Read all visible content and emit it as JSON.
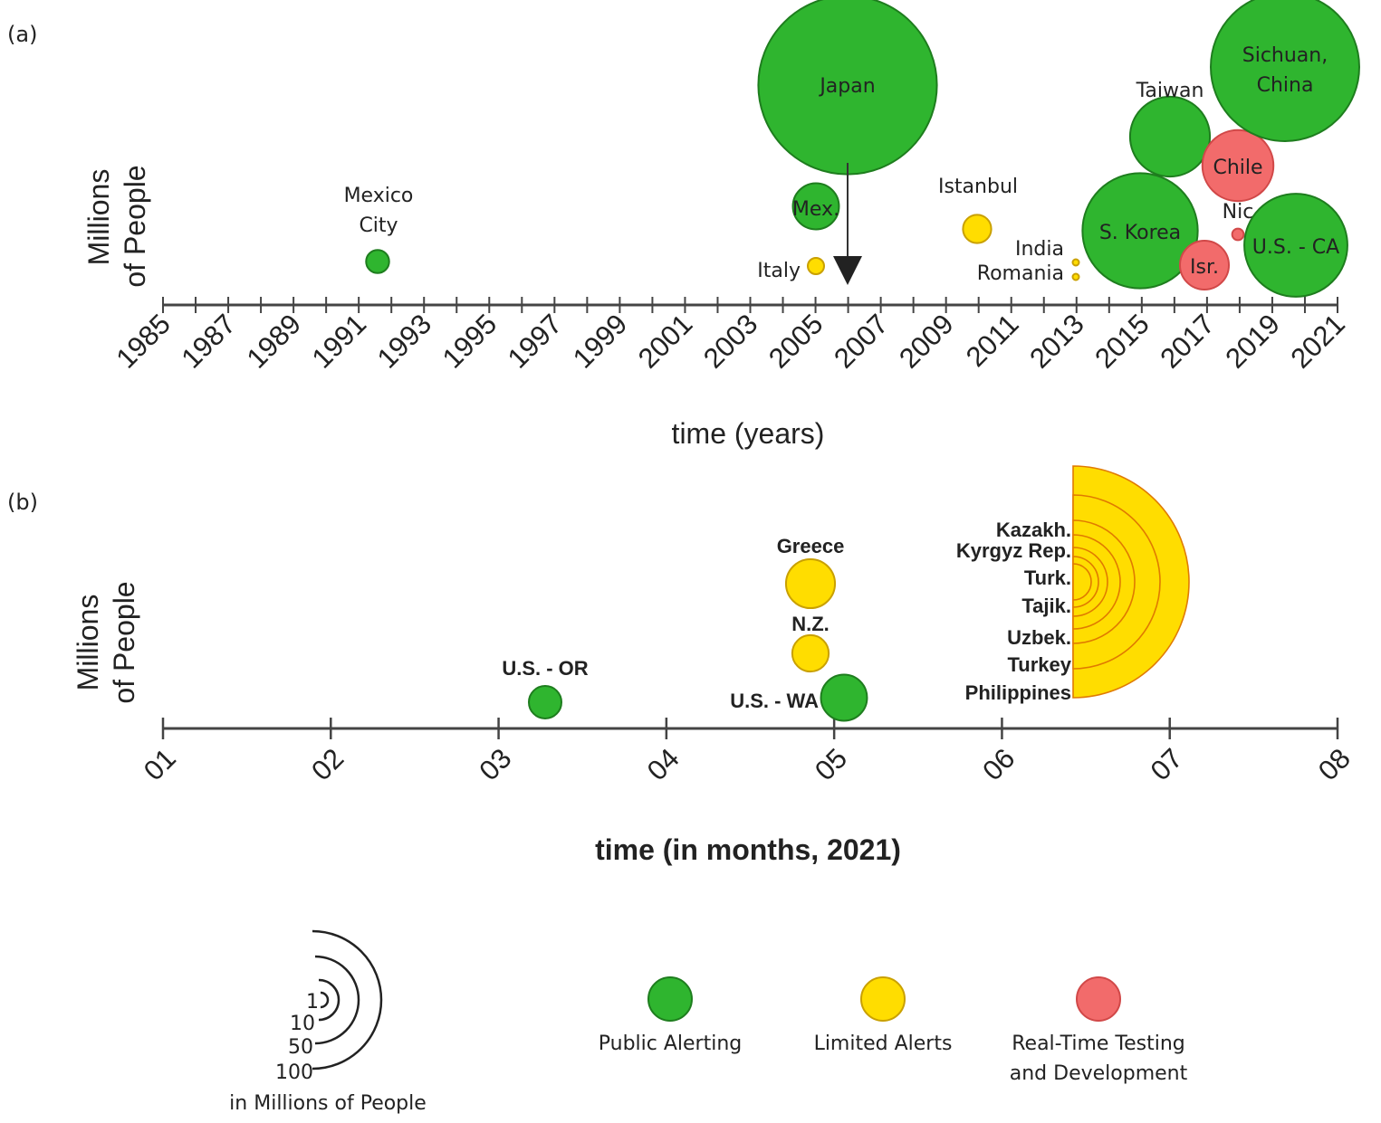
{
  "colors": {
    "public": "#2fb52f",
    "limited": "#ffdd00",
    "testing": "#f26b6b",
    "axis": "#444444",
    "text": "#222222"
  },
  "legend": {
    "size_values": [
      "1",
      "10",
      "50",
      "100"
    ],
    "size_caption": "in Millions of People",
    "categories": [
      {
        "key": "public",
        "label": [
          "Public Alerting"
        ]
      },
      {
        "key": "limited",
        "label": [
          "Limited Alerts"
        ]
      },
      {
        "key": "testing",
        "label": [
          "Real-Time Testing",
          "and Development"
        ]
      }
    ]
  },
  "chart_data": [
    {
      "panel": "(a)",
      "type": "scatter",
      "xlabel": "time (years)",
      "ylabel": [
        "Millions",
        "of People"
      ],
      "xlim": [
        1985,
        2021
      ],
      "ticks": [
        "1985",
        "1987",
        "1989",
        "1991",
        "1993",
        "1995",
        "1997",
        "1999",
        "2001",
        "2003",
        "2005",
        "2007",
        "2009",
        "2011",
        "2013",
        "2015",
        "2017",
        "2019",
        "2021"
      ],
      "annotations": [
        {
          "type": "arrow",
          "from": "Japan",
          "x": 2006
        }
      ],
      "points": [
        {
          "name": "Mexico City",
          "label": [
            "Mexico",
            "City"
          ],
          "x": 1991.6,
          "category": "public",
          "size_millions": 2
        },
        {
          "name": "Mex.",
          "label": [
            "Mex."
          ],
          "x": 2004.8,
          "category": "public",
          "size_millions": 8
        },
        {
          "name": "Italy",
          "label": [
            "Italy"
          ],
          "x": 2005.0,
          "category": "limited",
          "size_millions": 1
        },
        {
          "name": "Japan",
          "label": [
            "Japan"
          ],
          "x": 2006.0,
          "category": "public",
          "size_millions": 120
        },
        {
          "name": "Istanbul",
          "label": [
            "Istanbul"
          ],
          "x": 2010.0,
          "category": "limited",
          "size_millions": 3
        },
        {
          "name": "India",
          "label": [
            "India"
          ],
          "x": 2013.0,
          "category": "limited",
          "size_millions": 0.05
        },
        {
          "name": "Romania",
          "label": [
            "Romania"
          ],
          "x": 2013.0,
          "category": "limited",
          "size_millions": 0.05
        },
        {
          "name": "S. Korea",
          "label": [
            "S. Korea"
          ],
          "x": 2015.0,
          "category": "public",
          "size_millions": 50
        },
        {
          "name": "Taiwan",
          "label": [
            "Taiwan"
          ],
          "x": 2016.0,
          "category": "public",
          "size_millions": 24
        },
        {
          "name": "Isr.",
          "label": [
            "Isr."
          ],
          "x": 2017.0,
          "category": "testing",
          "size_millions": 9
        },
        {
          "name": "Chile",
          "label": [
            "Chile"
          ],
          "x": 2018.0,
          "category": "testing",
          "size_millions": 19
        },
        {
          "name": "Nic",
          "label": [
            "Nic"
          ],
          "x": 2018.0,
          "category": "testing",
          "size_millions": 0.5
        },
        {
          "name": "U.S. - CA",
          "label": [
            "U.S. - CA"
          ],
          "x": 2020.0,
          "category": "public",
          "size_millions": 40
        },
        {
          "name": "Sichuan, China",
          "label": [
            "Sichuan,",
            "China"
          ],
          "x": 2019.5,
          "category": "public",
          "size_millions": 83
        }
      ]
    },
    {
      "panel": "(b)",
      "type": "scatter",
      "xlabel": "time (in months, 2021)",
      "ylabel": [
        "Millions",
        "of People"
      ],
      "xlim": [
        1,
        8
      ],
      "ticks": [
        "01",
        "02",
        "03",
        "04",
        "05",
        "06",
        "07",
        "08"
      ],
      "points": [
        {
          "name": "U.S. - OR",
          "label": [
            "U.S. - OR"
          ],
          "x": 3.3,
          "category": "public",
          "size_millions": 4
        },
        {
          "name": "Greece",
          "label": [
            "Greece"
          ],
          "x": 4.85,
          "category": "limited",
          "size_millions": 10
        },
        {
          "name": "N.Z.",
          "label": [
            "N.Z."
          ],
          "x": 4.85,
          "category": "limited",
          "size_millions": 5
        },
        {
          "name": "U.S. - WA",
          "label": [
            "U.S. - WA"
          ],
          "x": 5.05,
          "category": "public",
          "size_millions": 8
        }
      ],
      "group": {
        "x": 6.45,
        "category": "limited",
        "members": [
          {
            "name": "Kazakh.",
            "size_millions": 19
          },
          {
            "name": "Kyrgyz Rep.",
            "size_millions": 6.5
          },
          {
            "name": "Turk.",
            "size_millions": 6
          },
          {
            "name": "Tajik.",
            "size_millions": 9.5
          },
          {
            "name": "Uzbek.",
            "size_millions": 34
          },
          {
            "name": "Turkey",
            "size_millions": 84
          },
          {
            "name": "Philippines",
            "size_millions": 110
          }
        ]
      }
    }
  ]
}
